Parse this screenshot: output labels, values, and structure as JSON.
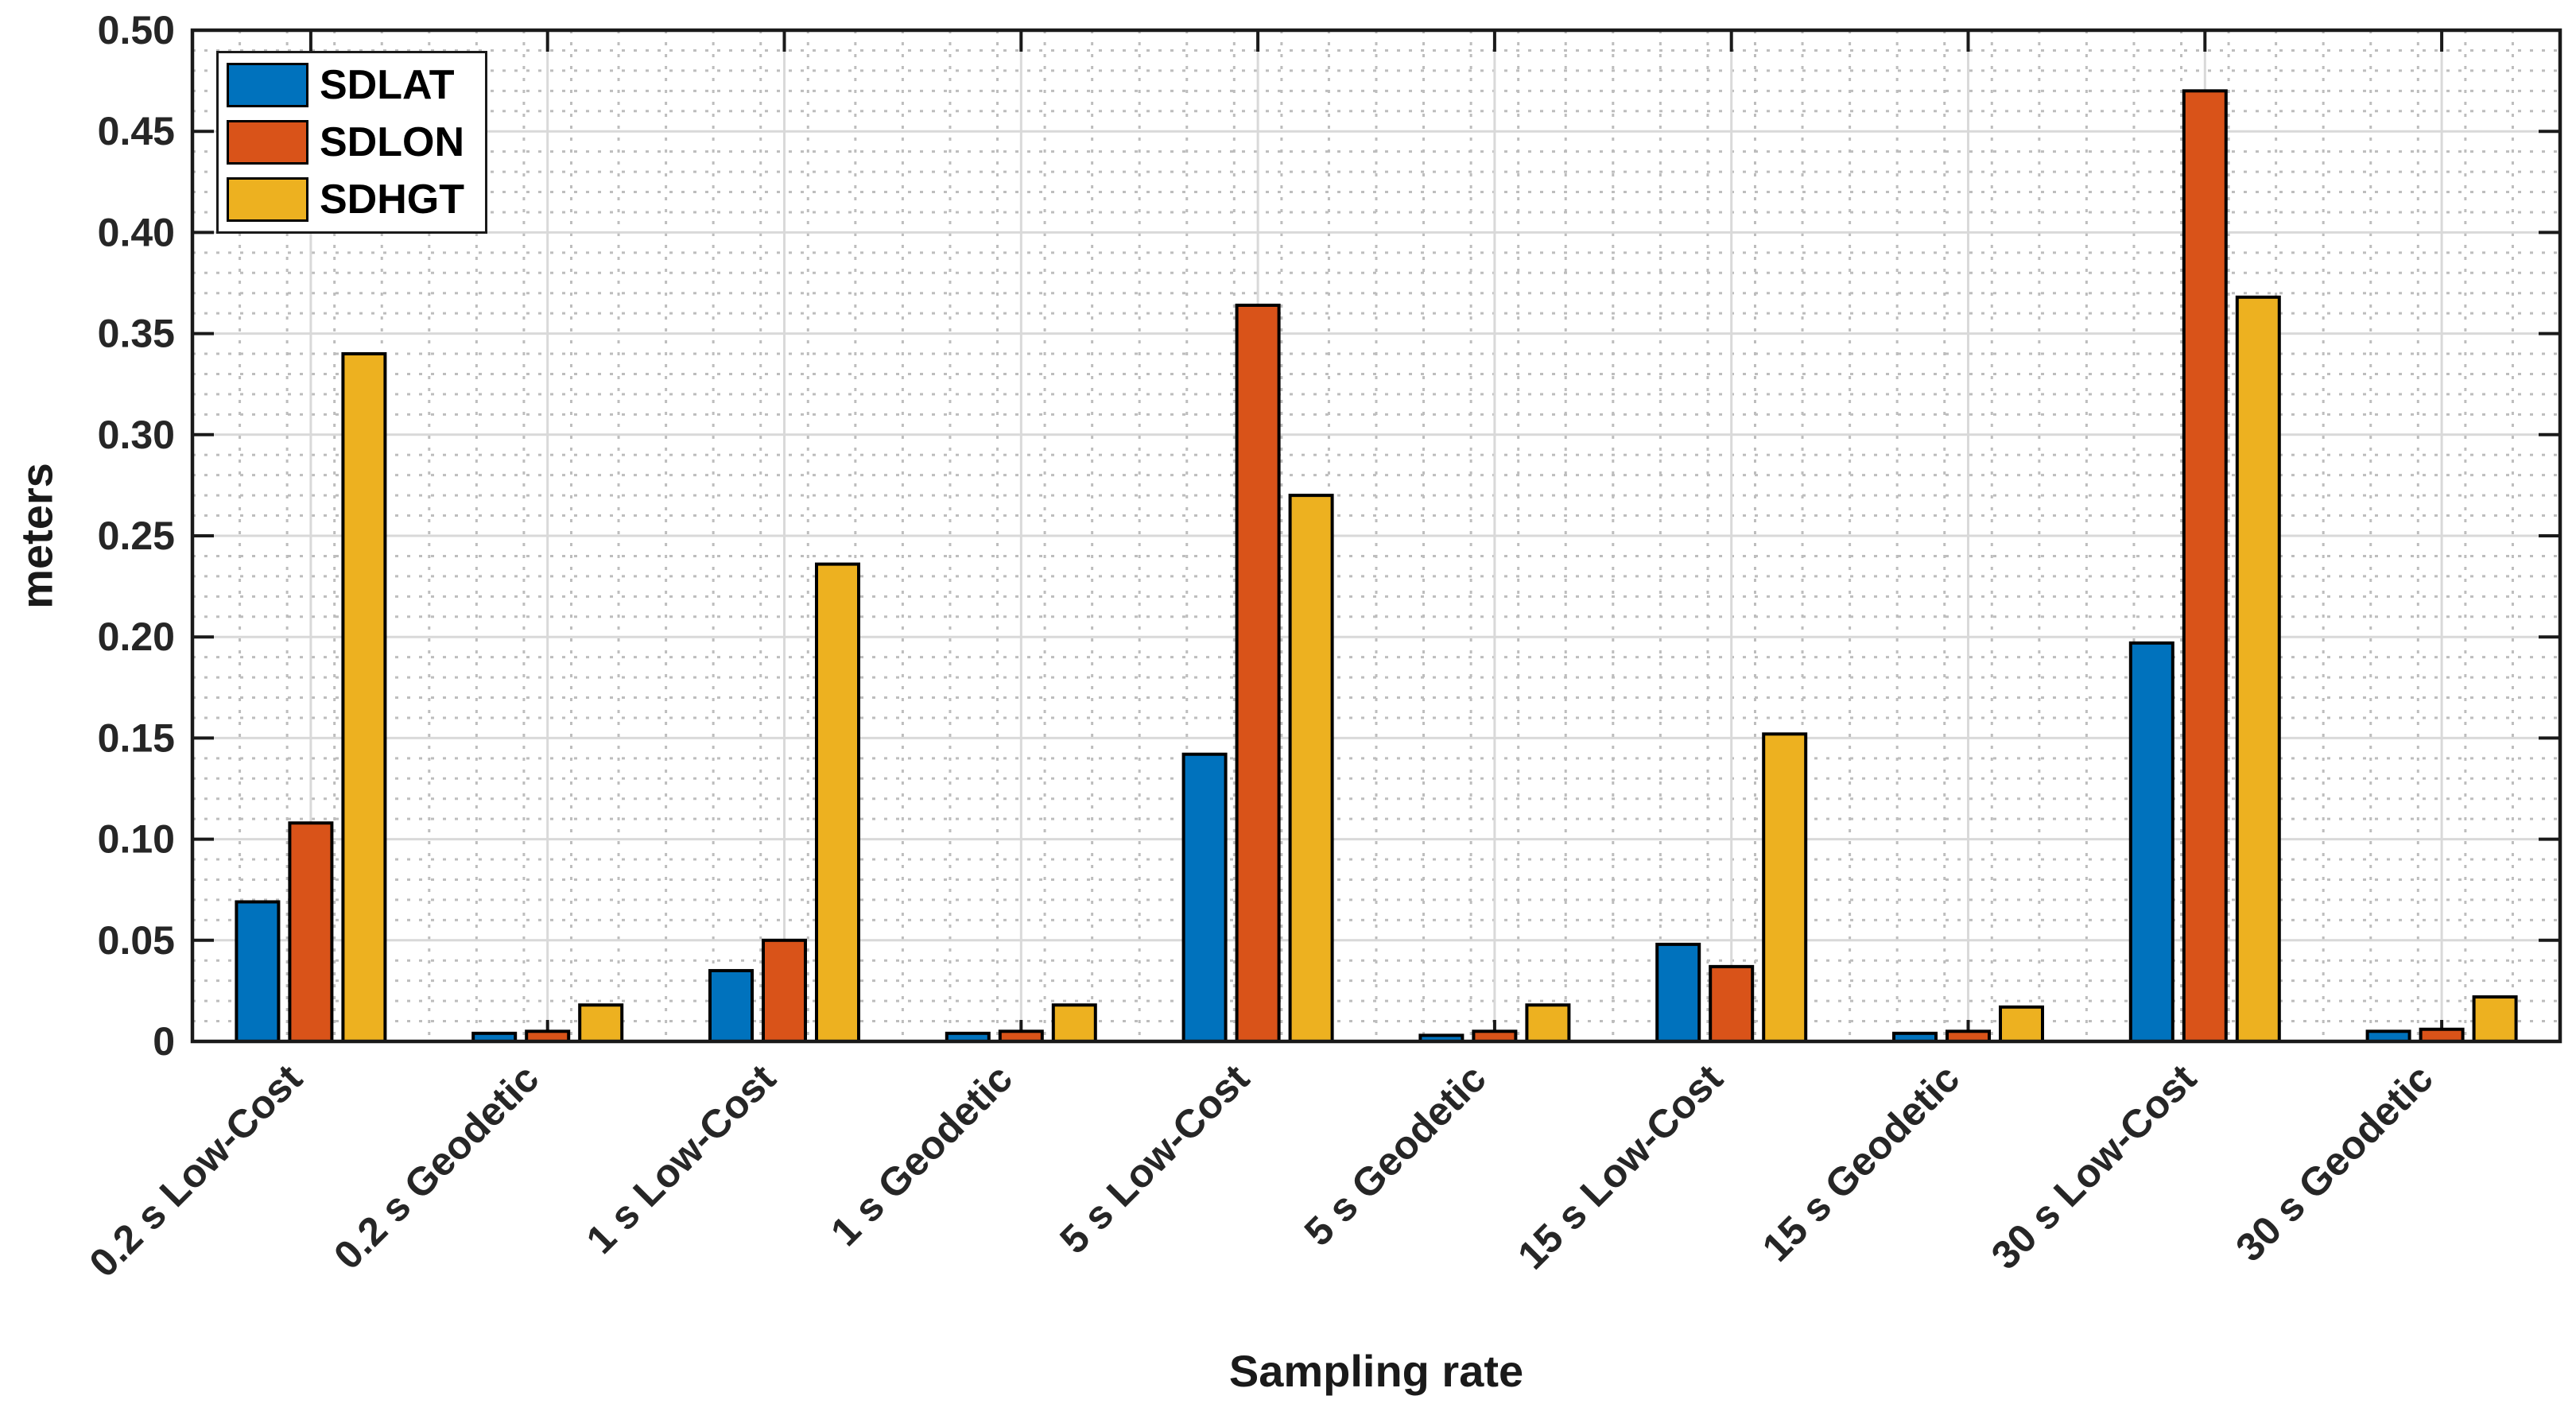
{
  "chart_data": {
    "type": "bar",
    "title": "",
    "xlabel": "Sampling rate",
    "ylabel": "meters",
    "categories": [
      "0.2 s Low-Cost",
      "0.2 s Geodetic",
      "1 s Low-Cost",
      "1 s Geodetic",
      "5 s Low-Cost",
      "5 s Geodetic",
      "15 s Low-Cost",
      "15 s Geodetic",
      "30 s Low-Cost",
      "30 s Geodetic"
    ],
    "series": [
      {
        "name": "SDLAT",
        "color": "#0072BD",
        "values": [
          0.069,
          0.004,
          0.035,
          0.004,
          0.142,
          0.003,
          0.048,
          0.004,
          0.197,
          0.005
        ]
      },
      {
        "name": "SDLON",
        "color": "#D95319",
        "values": [
          0.108,
          0.005,
          0.05,
          0.005,
          0.364,
          0.005,
          0.037,
          0.005,
          0.47,
          0.006
        ]
      },
      {
        "name": "SDHGT",
        "color": "#EDB120",
        "values": [
          0.34,
          0.018,
          0.236,
          0.018,
          0.27,
          0.018,
          0.152,
          0.017,
          0.368,
          0.022
        ]
      }
    ],
    "ylim": [
      0,
      0.5
    ],
    "ytick_step": 0.05,
    "ytick_labels": [
      "0",
      "0.05",
      "0.10",
      "0.15",
      "0.20",
      "0.25",
      "0.30",
      "0.35",
      "0.40",
      "0.45",
      "0.50"
    ],
    "y_minor_step": 0.01,
    "x_minor_step": 0.2,
    "grid": true,
    "minor_grid": true,
    "legend_position": "top-left",
    "colors": {
      "axis": "#1a1a1a",
      "bar_edge": "#000000",
      "major_grid": "#d9d9d9",
      "minor_grid": "#bdbdbd",
      "text": "#262626",
      "background": "#ffffff"
    }
  }
}
